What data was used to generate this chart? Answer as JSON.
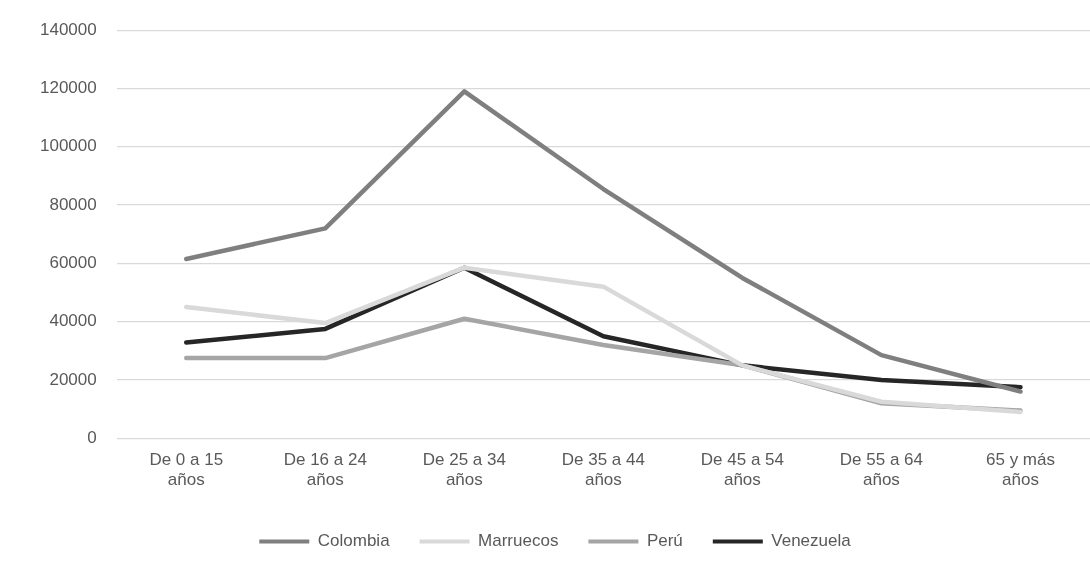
{
  "chart_data": {
    "type": "line",
    "categories": [
      "De 0 a 15 años",
      "De 16 a 24 años",
      "De 25 a 34 años",
      "De 35 a 44 años",
      "De 45 a 54 años",
      "De 55 a 64 años",
      "65 y más años"
    ],
    "series": [
      {
        "name": "Colombia",
        "color": "#7f7f7f",
        "values": [
          61500,
          72000,
          119000,
          85500,
          55000,
          28500,
          16000
        ]
      },
      {
        "name": "Marruecos",
        "color": "#d9d9d9",
        "values": [
          45000,
          39500,
          58500,
          52000,
          25000,
          12500,
          9000
        ]
      },
      {
        "name": "Perú",
        "color": "#a5a5a5",
        "values": [
          27500,
          27500,
          41000,
          32000,
          25000,
          12000,
          9500
        ]
      },
      {
        "name": "Venezuela",
        "color": "#262626",
        "values": [
          32800,
          37500,
          58500,
          35000,
          25000,
          20000,
          17500
        ]
      }
    ],
    "ylim": [
      0,
      140000
    ],
    "yticks": [
      0,
      20000,
      40000,
      60000,
      80000,
      100000,
      120000,
      140000
    ],
    "grid": "y",
    "legend": "bottom",
    "marker": "none",
    "line_style": "solid"
  }
}
